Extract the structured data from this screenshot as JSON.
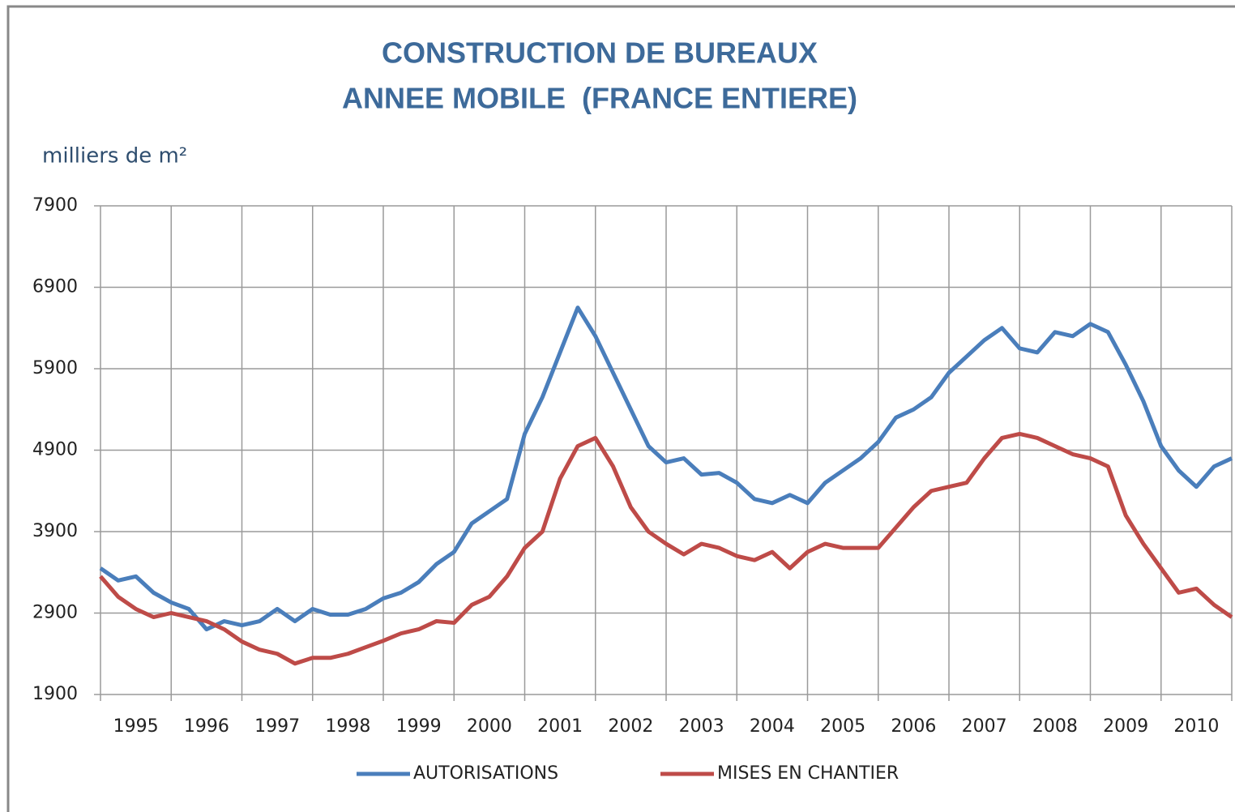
{
  "chart_data": {
    "type": "line",
    "title": "CONSTRUCTION DE BUREAUX",
    "subtitle": "ANNEE MOBILE  (FRANCE ENTIERE)",
    "y_label": "milliers de m²",
    "categories": [
      null,
      null,
      "1995",
      null,
      null,
      null,
      "1996",
      null,
      null,
      null,
      "1997",
      null,
      null,
      null,
      "1998",
      null,
      null,
      null,
      "1999",
      null,
      null,
      null,
      "2000",
      null,
      null,
      null,
      "2001",
      null,
      null,
      null,
      "2002",
      null,
      null,
      null,
      "2003",
      null,
      null,
      null,
      "2004",
      null,
      null,
      null,
      "2005",
      null,
      null,
      null,
      "2006",
      null,
      null,
      null,
      "2007",
      null,
      null,
      null,
      "2008",
      null,
      null,
      null,
      "2009",
      null,
      null,
      null,
      "2010",
      null,
      null
    ],
    "series": [
      {
        "name": "AUTORISATIONS",
        "color": "#4a7ebb",
        "values": [
          3450,
          3300,
          3350,
          3150,
          3030,
          2950,
          2700,
          2800,
          2750,
          2800,
          2950,
          2800,
          2950,
          2880,
          2880,
          2950,
          3080,
          3150,
          3280,
          3500,
          3650,
          4000,
          4150,
          4300,
          5100,
          5550,
          6100,
          6650,
          6300,
          5850,
          5400,
          4950,
          4750,
          4800,
          4600,
          4620,
          4500,
          4300,
          4250,
          4350,
          4250,
          4500,
          4650,
          4800,
          5000,
          5300,
          5400,
          5550,
          5850,
          6050,
          6250,
          6400,
          6150,
          6100,
          6350,
          6300,
          6450,
          6350,
          5950,
          5500,
          4950,
          4650,
          4450,
          4700,
          4800
        ]
      },
      {
        "name": "MISES EN CHANTIER",
        "color": "#be4b48",
        "values": [
          3350,
          3100,
          2950,
          2850,
          2900,
          2850,
          2800,
          2700,
          2550,
          2450,
          2400,
          2280,
          2350,
          2350,
          2400,
          2480,
          2560,
          2650,
          2700,
          2800,
          2780,
          3000,
          3100,
          3350,
          3700,
          3900,
          4550,
          4950,
          5050,
          4700,
          4200,
          3900,
          3750,
          3620,
          3750,
          3700,
          3600,
          3550,
          3650,
          3450,
          3650,
          3750,
          3700,
          3700,
          3700,
          3950,
          4200,
          4400,
          4450,
          4500,
          4800,
          5050,
          5100,
          5050,
          4950,
          4850,
          4800,
          4700,
          4100,
          3750,
          3450,
          3150,
          3200,
          3000,
          2850
        ]
      }
    ],
    "ylim": [
      1900,
      7900
    ],
    "yticks": [
      1900,
      2900,
      3900,
      4900,
      5900,
      6900,
      7900
    ],
    "grid": true
  }
}
